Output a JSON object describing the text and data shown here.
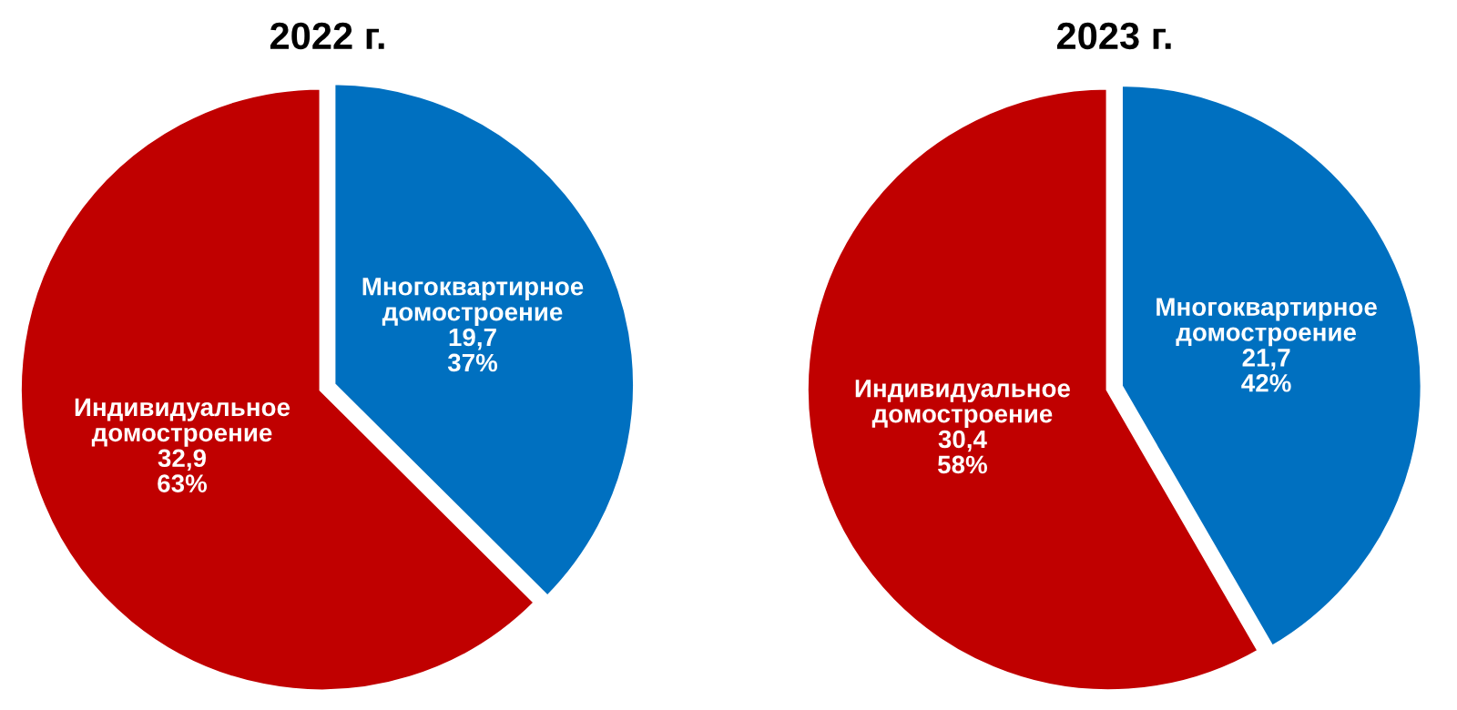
{
  "chart_data": [
    {
      "type": "pie",
      "title": "2022 г.",
      "categories": [
        "Многоквартирное домостроение",
        "Индивидуальное домостроение"
      ],
      "values": [
        19.7,
        32.9
      ],
      "colors": [
        "#0070c0",
        "#c00000"
      ],
      "value_labels": [
        "19,7\n37%",
        "32,9\n63%"
      ]
    },
    {
      "type": "pie",
      "title": "2023 г.",
      "categories": [
        "Многоквартирное домостроение",
        "Индивидуальное домостроение"
      ],
      "values": [
        21.7,
        30.4
      ],
      "colors": [
        "#0070c0",
        "#c00000"
      ],
      "value_labels": [
        "21,7\n42%",
        "30,4\n58%"
      ]
    }
  ]
}
